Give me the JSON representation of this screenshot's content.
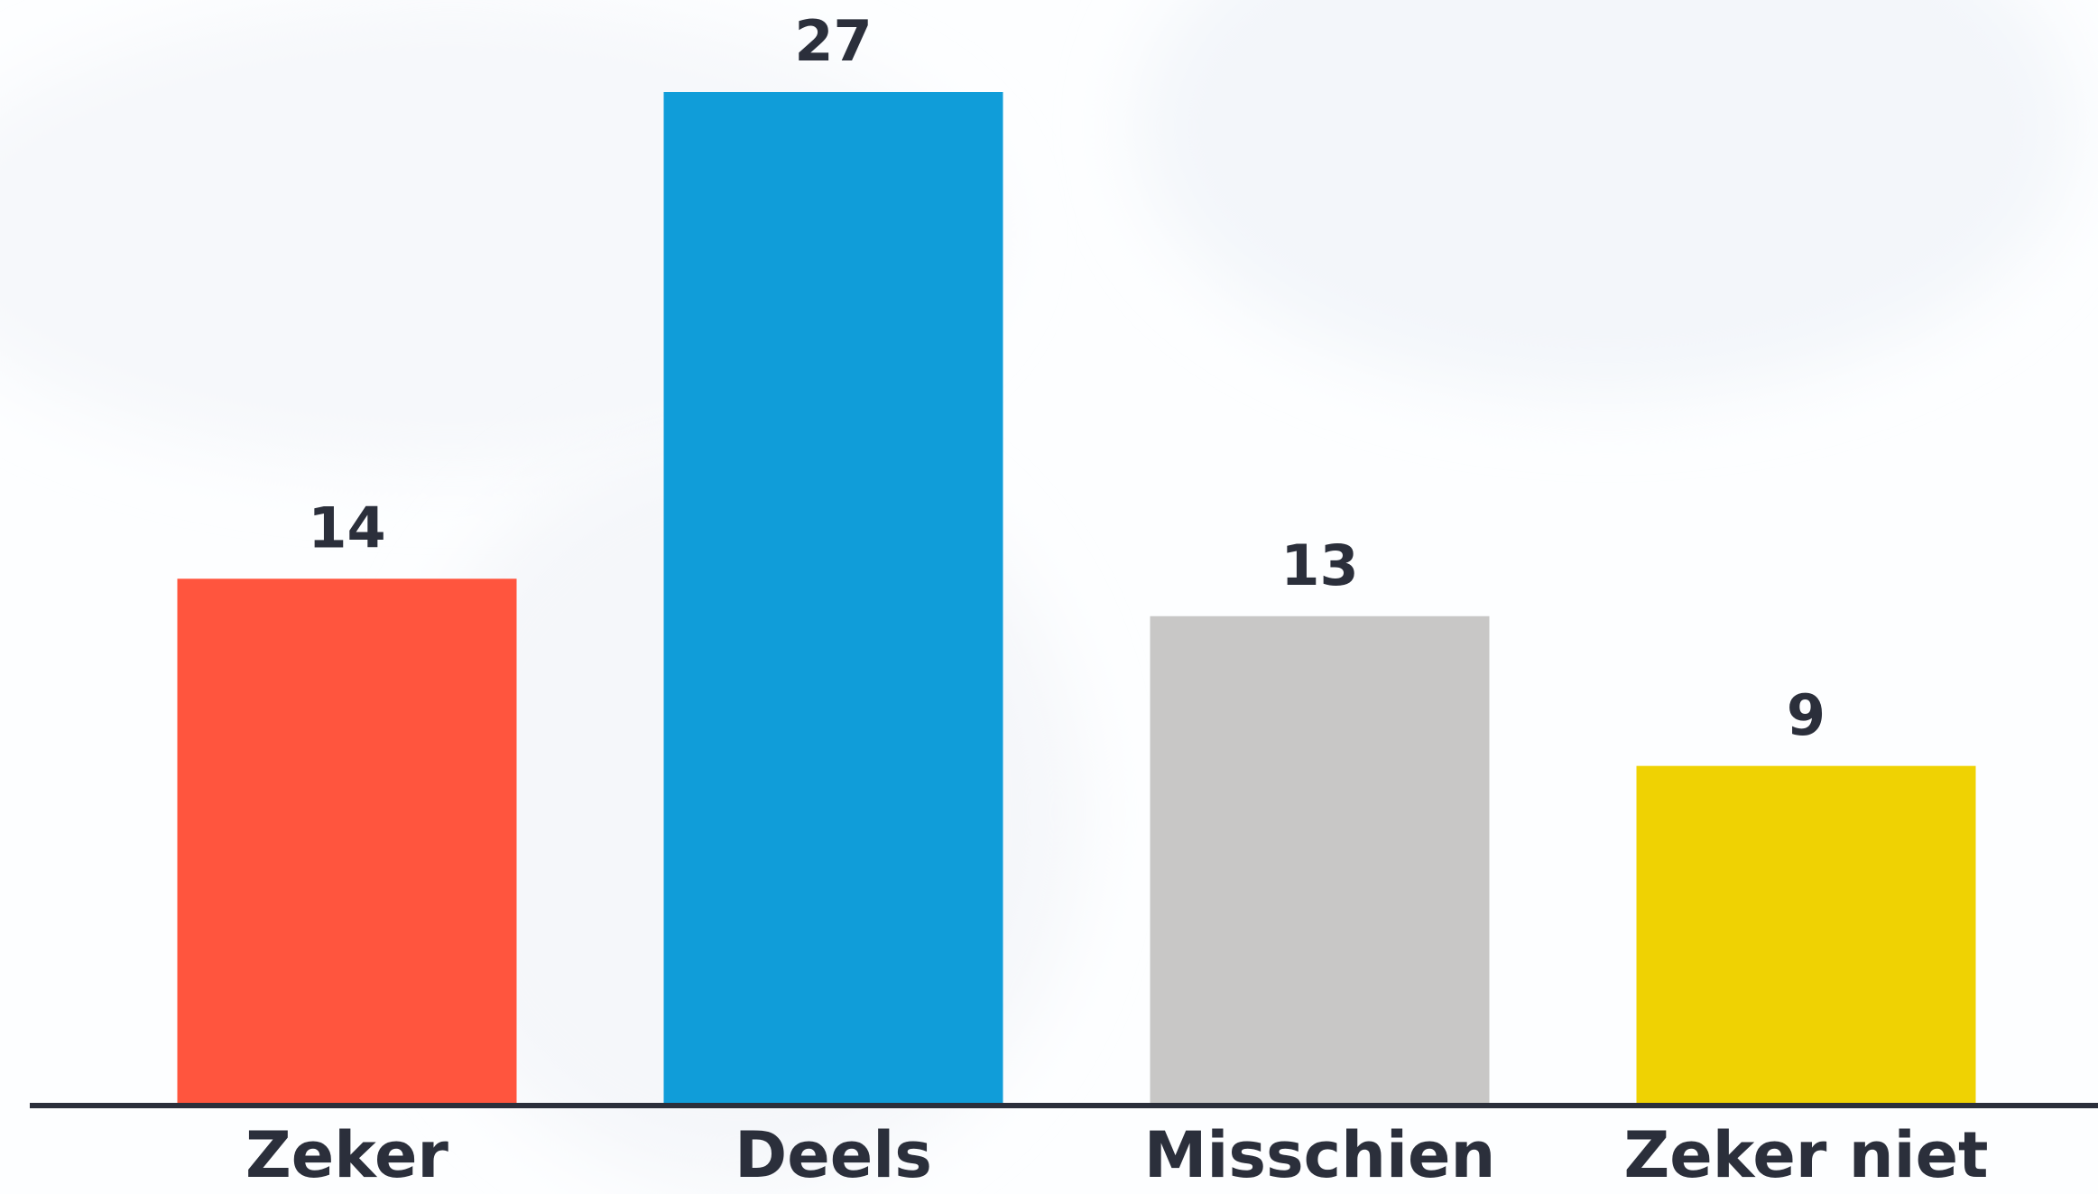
{
  "chart_data": {
    "type": "bar",
    "categories": [
      "Zeker",
      "Deels",
      "Misschien",
      "Zeker niet"
    ],
    "values": [
      14,
      27,
      13,
      9
    ],
    "colors": [
      "#ff553e",
      "#109dd9",
      "#c8c7c6",
      "#efd203"
    ]
  }
}
